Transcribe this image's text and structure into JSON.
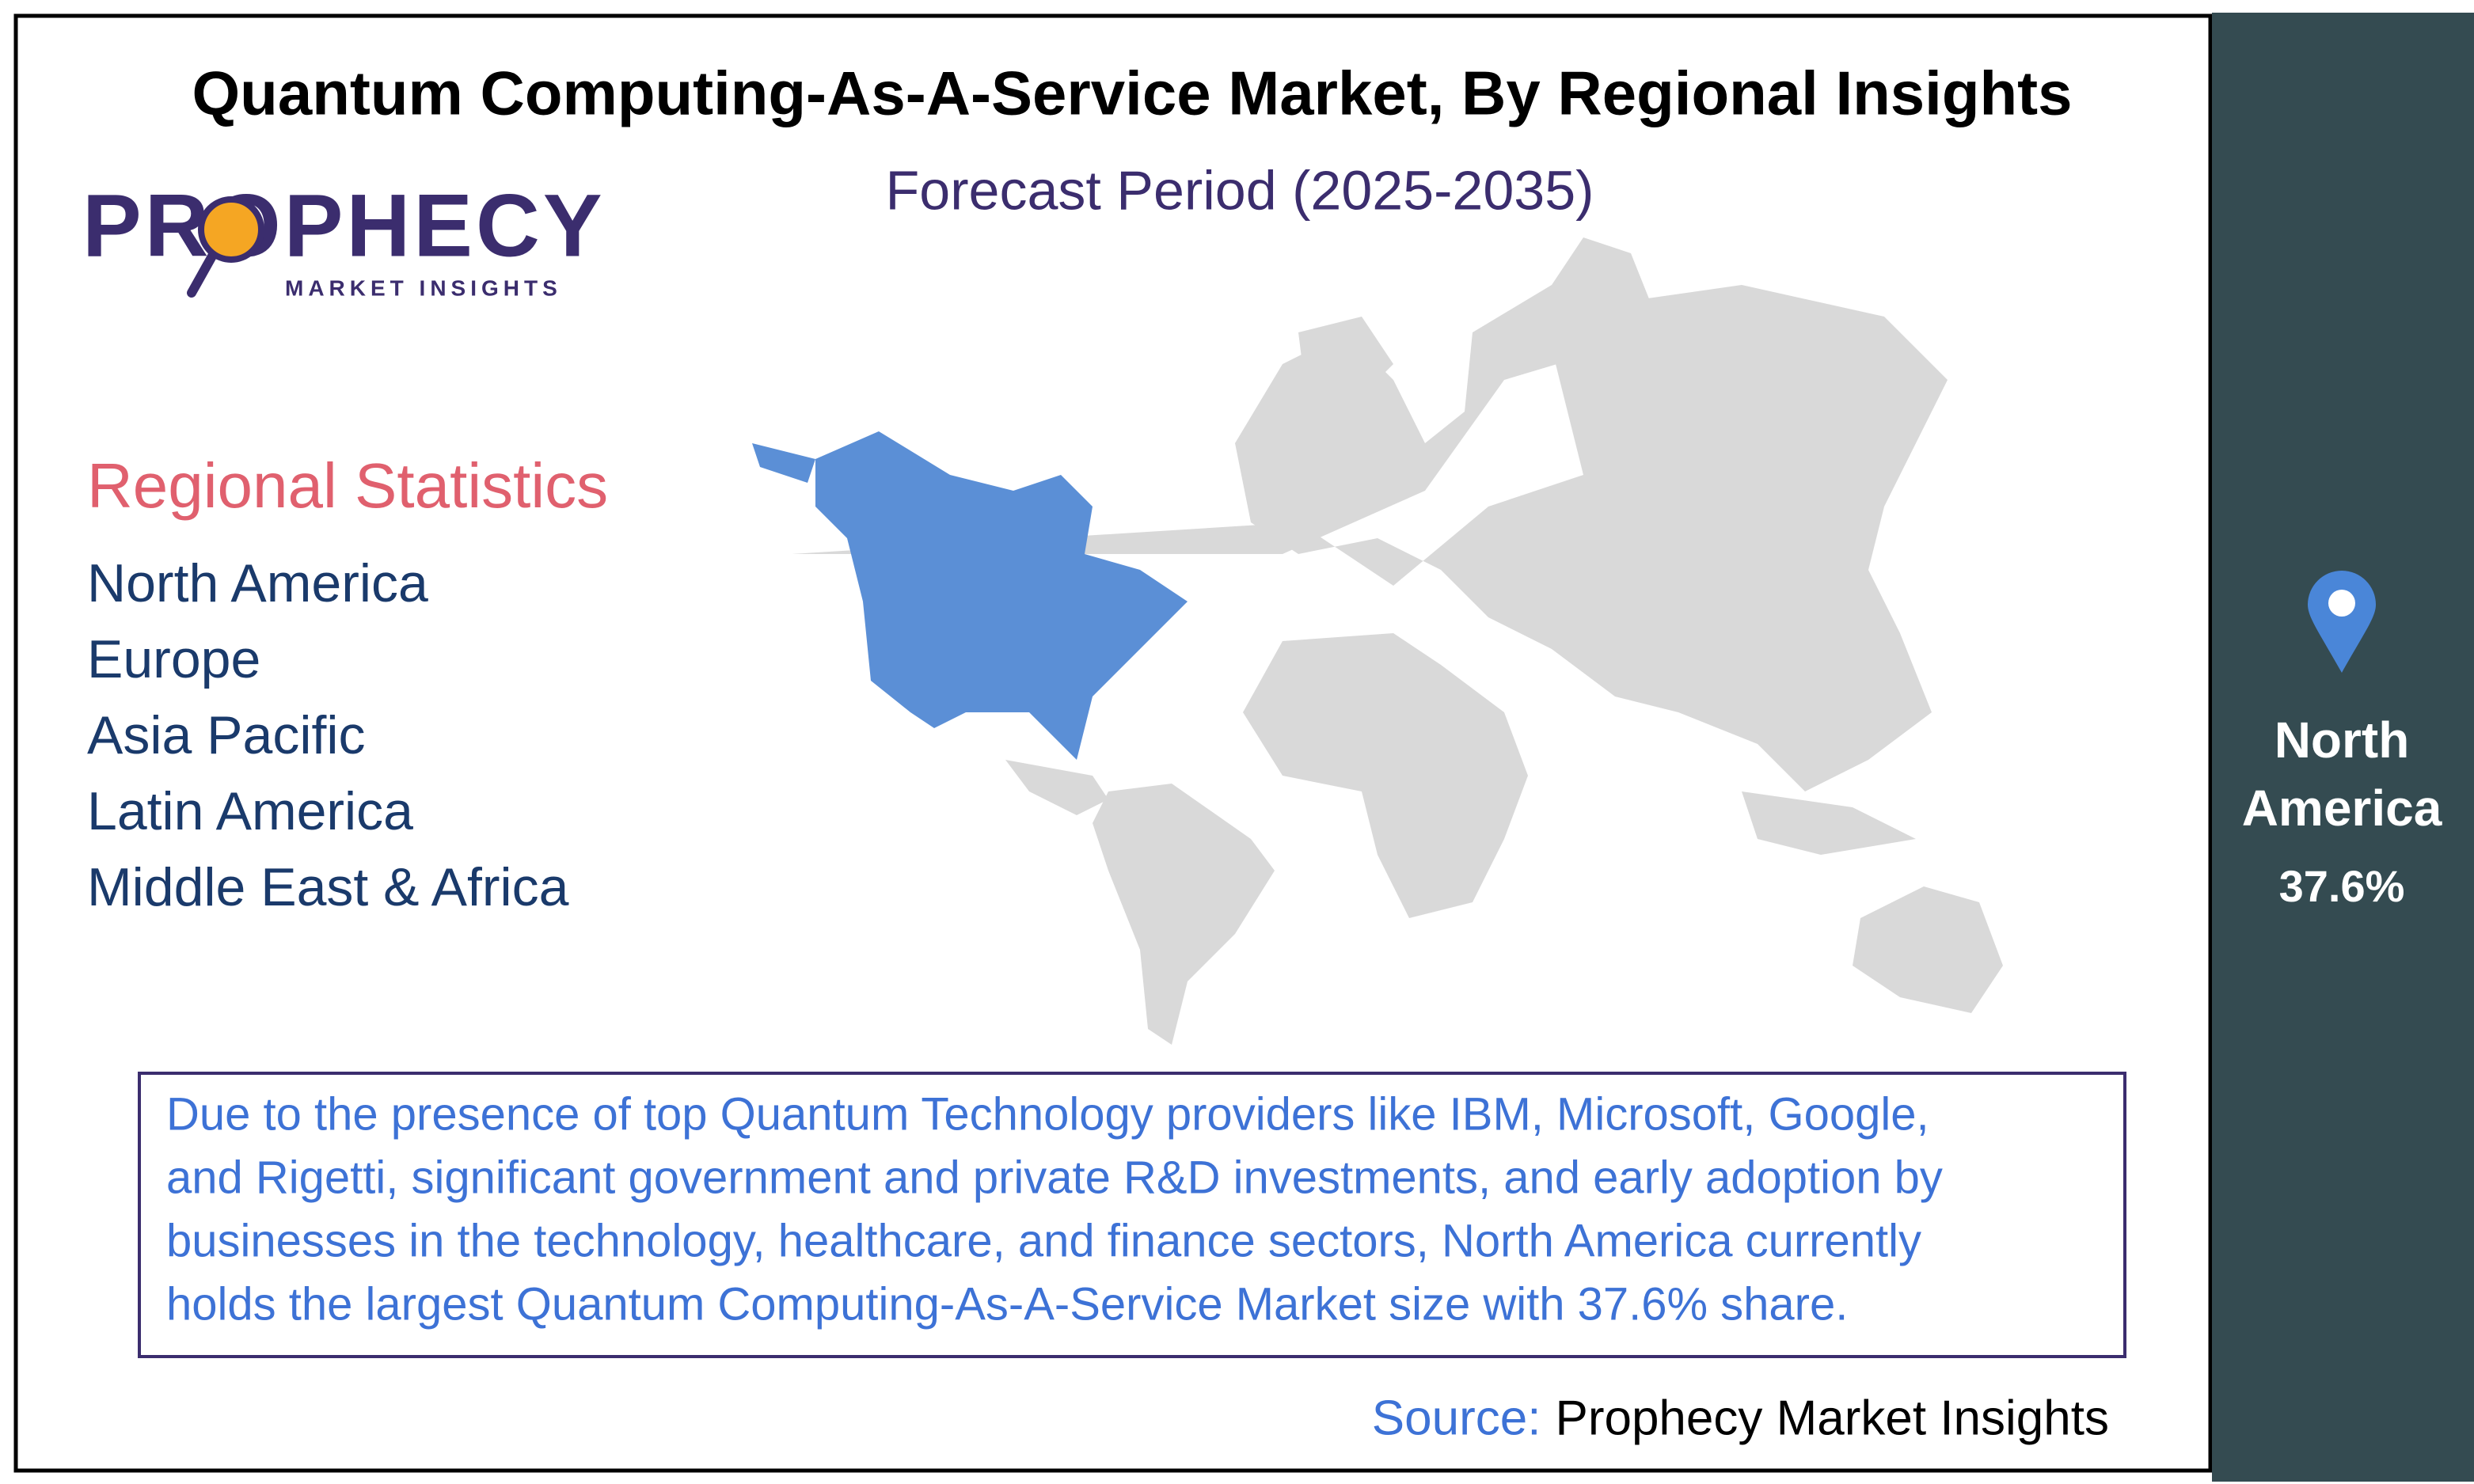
{
  "header": {
    "title": "Quantum Computing-As-A-Service Market, By Regional Insights",
    "subtitle": "Forecast Period (2025-2035)"
  },
  "logo": {
    "name": "PROPHECY",
    "tagline": "MARKET INSIGHTS"
  },
  "regions": {
    "heading": "Regional Statistics",
    "items": [
      "North America",
      "Europe",
      "Asia Pacific",
      "Latin America",
      "Middle East & Africa"
    ]
  },
  "description": {
    "lines": [
      "Due to the presence of top Quantum Technology providers like IBM, Microsoft, Google,",
      "and Rigetti, significant government and private R&D investments, and early adoption by",
      "businesses in the technology, healthcare, and finance sectors, North America currently",
      "holds the largest Quantum Computing-As-A-Service Market size with 37.6% share."
    ]
  },
  "source": {
    "label": "Source:",
    "text": "Prophecy Market Insights"
  },
  "highlight": {
    "region_lines": [
      "North",
      "America"
    ],
    "share": "37.6%"
  }
}
